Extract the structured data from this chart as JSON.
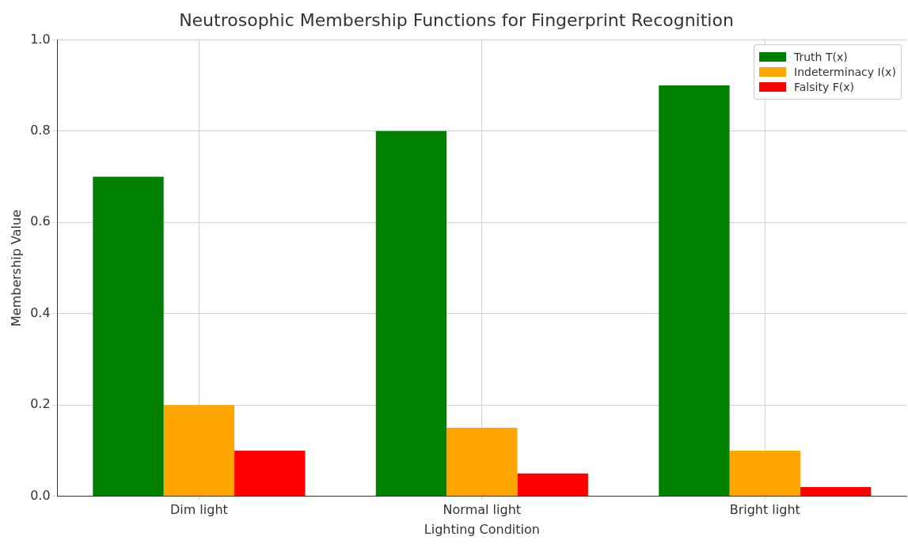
{
  "chart_data": {
    "type": "bar",
    "title": "Neutrosophic Membership Functions for Fingerprint Recognition",
    "xlabel": "Lighting Condition",
    "ylabel": "Membership Value",
    "categories": [
      "Dim light",
      "Normal light",
      "Bright light"
    ],
    "series": [
      {
        "name": "Truth T(x)",
        "color": "#008000",
        "values": [
          0.7,
          0.8,
          0.9
        ]
      },
      {
        "name": "Indeterminacy I(x)",
        "color": "#ffa500",
        "values": [
          0.2,
          0.15,
          0.1
        ]
      },
      {
        "name": "Falsity F(x)",
        "color": "#ff0000",
        "values": [
          0.1,
          0.05,
          0.02
        ]
      }
    ],
    "ylim": [
      0,
      1
    ],
    "yticks": [
      {
        "value": 0,
        "label": "0.0"
      },
      {
        "value": 0.2,
        "label": "0.2"
      },
      {
        "value": 0.4,
        "label": "0.4"
      },
      {
        "value": 0.6,
        "label": "0.6"
      },
      {
        "value": 0.8,
        "label": "0.8"
      },
      {
        "value": 1,
        "label": "1.0"
      }
    ],
    "grid": true,
    "legend": "top right"
  }
}
